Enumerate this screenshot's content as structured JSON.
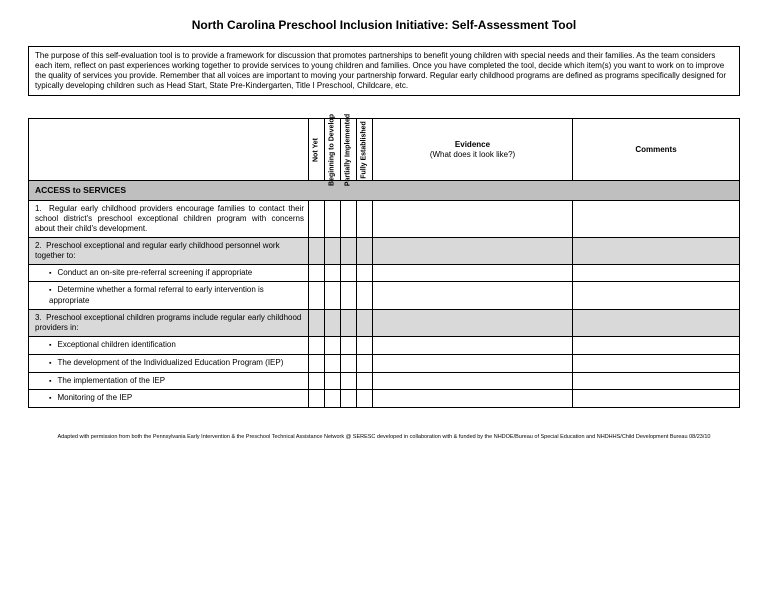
{
  "title": "North Carolina Preschool Inclusion Initiative:  Self-Assessment Tool",
  "intro": "The purpose of this self-evaluation tool is to provide a framework for discussion that promotes partnerships to benefit young children with special needs and their families.  As the team considers each item, reflect on past experiences working together to provide services to young children and families.   Once you have completed the tool, decide which item(s) you want to work on to improve the quality of services you provide. Remember that all voices are important to moving your partnership forward.  Regular early childhood programs are defined as programs specifically designed for typically developing children such as Head Start, State Pre-Kindergarten, Title I Preschool, Childcare, etc.",
  "headers": {
    "not_yet": "Not Yet",
    "beginning": "Beginning to Develop",
    "partially": "Partially Implemented",
    "fully": "Fully Established",
    "evidence": "Evidence",
    "evidence_sub": "(What does it look like?)",
    "comments": "Comments"
  },
  "section": "ACCESS to SERVICES",
  "rows": {
    "r1": "Regular early childhood providers encourage families to contact their school district's preschool exceptional children program with concerns about their child's development.",
    "r2": "Preschool  exceptional and  regular early childhood  personnel work together to:",
    "r2a": "Conduct an on-site pre-referral screening if appropriate",
    "r2b": "Determine whether a formal referral to  early intervention  is appropriate",
    "r3": "Preschool  exceptional children programs include regular early childhood providers in:",
    "r3a": "Exceptional children identification",
    "r3b": "The development of the Individualized Education Program (IEP)",
    "r3c": "The implementation of the IEP",
    "r3d": "Monitoring of the IEP"
  },
  "footer": "Adapted with permission from both the Pennsylvania Early Intervention & the  Preschool Technical Assistance Network @ SERESC developed in collaboration with & funded by the NHDOE/Bureau of Special Education and NHDHHS/Child Development Bureau 08/23/10"
}
